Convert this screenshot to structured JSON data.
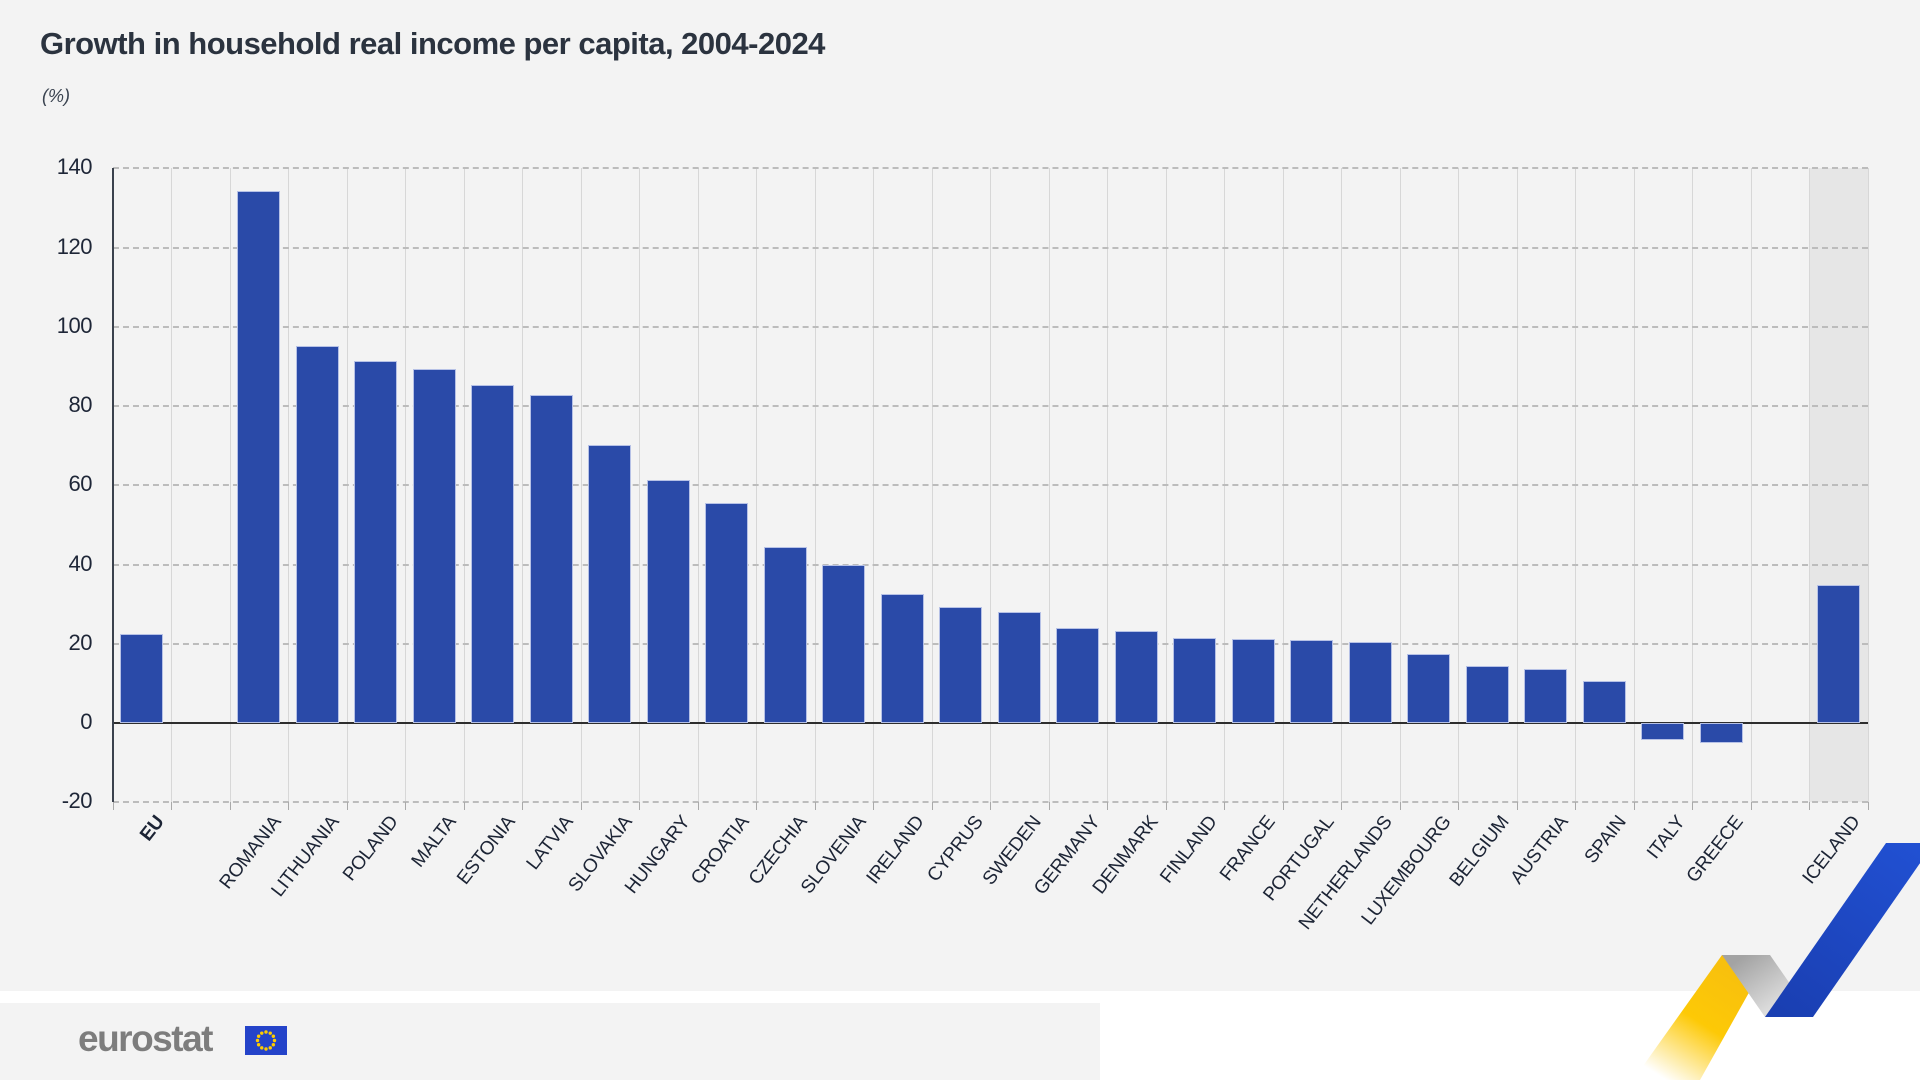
{
  "title": "Growth in household real income per capita, 2004-2024",
  "subtitle": "(%)",
  "logo": {
    "text": "eurostat"
  },
  "chart_data": {
    "type": "bar",
    "title": "Growth in household real income per capita, 2004-2024",
    "ylabel": "(%)",
    "categories": [
      "EU",
      "ROMANIA",
      "LITHUANIA",
      "POLAND",
      "MALTA",
      "ESTONIA",
      "LATVIA",
      "SLOVAKIA",
      "HUNGARY",
      "CROATIA",
      "CZECHIA",
      "SLOVENIA",
      "IRELAND",
      "CYPRUS",
      "SWEDEN",
      "GERMANY",
      "DENMARK",
      "FINLAND",
      "FRANCE",
      "PORTUGAL",
      "NETHERLANDS",
      "LUXEMBOURG",
      "BELGIUM",
      "AUSTRIA",
      "SPAIN",
      "ITALY",
      "GREECE",
      "ICELAND"
    ],
    "values": [
      22.5,
      134.2,
      95.1,
      91.3,
      89.4,
      85.3,
      82.8,
      70.2,
      61.3,
      55.6,
      44.5,
      40.0,
      32.6,
      29.2,
      28.0,
      24.1,
      23.3,
      21.4,
      21.1,
      21.0,
      20.5,
      17.3,
      14.4,
      13.6,
      10.6,
      -4.2,
      -5.1,
      34.8
    ],
    "column_slots": [
      "EU",
      "",
      "ROMANIA",
      "LITHUANIA",
      "POLAND",
      "MALTA",
      "ESTONIA",
      "LATVIA",
      "SLOVAKIA",
      "HUNGARY",
      "CROATIA",
      "CZECHIA",
      "SLOVENIA",
      "IRELAND",
      "CYPRUS",
      "SWEDEN",
      "GERMANY",
      "DENMARK",
      "FINLAND",
      "FRANCE",
      "PORTUGAL",
      "NETHERLANDS",
      "LUXEMBOURG",
      "BELGIUM",
      "AUSTRIA",
      "SPAIN",
      "ITALY",
      "GREECE",
      "",
      "ICELAND"
    ],
    "yticks": [
      140,
      120,
      100,
      80,
      60,
      40,
      20,
      0,
      -20
    ],
    "ylim": [
      -20,
      140
    ],
    "grid": "dashed-horizontal, solid-vertical",
    "legend": "none",
    "bold_category": "EU",
    "highlighted_category": "ICELAND",
    "bar_color": "#2a4aa8",
    "highlight_band_color": "#e6e6e6",
    "accent_yellow": "#fcc506",
    "accent_blue": "#1d4ac9"
  }
}
